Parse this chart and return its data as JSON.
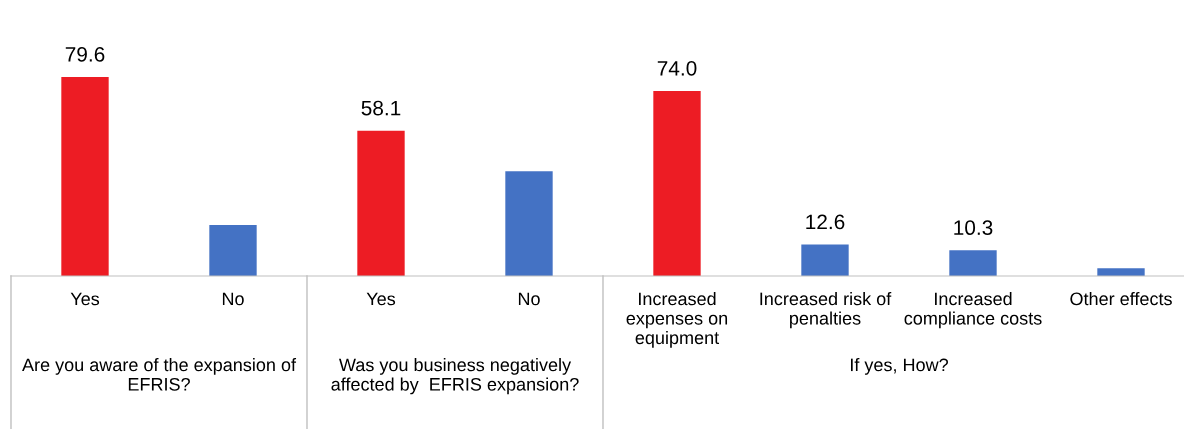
{
  "chart_data": {
    "type": "bar",
    "categories": [
      "Yes",
      "No",
      "Yes",
      "No",
      "Increased\nexpenses on\nequipment",
      "Increased risk of\npenalties",
      "Increased\ncompliance costs",
      "Other effects"
    ],
    "values": [
      79.6,
      20.4,
      58.1,
      41.9,
      74.0,
      12.6,
      10.3,
      3.1
    ],
    "colors": [
      "#ed1c24",
      "#4472c4",
      "#ed1c24",
      "#4472c4",
      "#ed1c24",
      "#4472c4",
      "#4472c4",
      "#4472c4"
    ],
    "value_labels": [
      "79.6",
      null,
      "58.1",
      null,
      "74.0",
      "12.6",
      "10.3",
      null
    ],
    "annotations": [
      "Are you aware of the expansion of\nEFRIS?",
      "Was you business negatively\naffected by  EFRIS expansion?",
      "If yes, How?"
    ],
    "legend": false
  }
}
